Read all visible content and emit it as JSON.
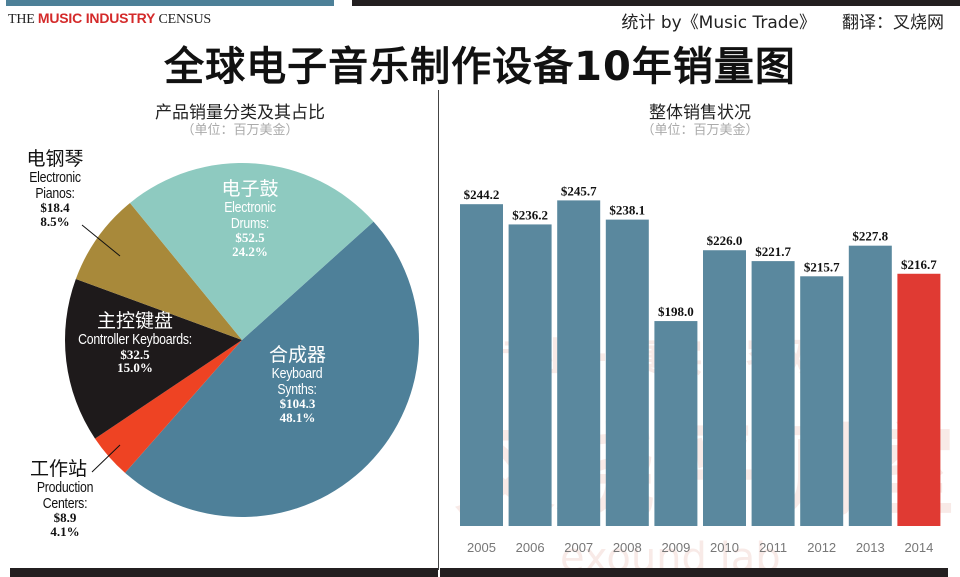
{
  "header": {
    "brand_prefix": "THE ",
    "brand_highlight": "MUSIC INDUSTRY",
    "brand_suffix": " CENSUS",
    "source": "统计 by《Music Trade》",
    "translator": "翻译：叉烧网",
    "title": "全球电子音乐制作设备10年销量图"
  },
  "watermark": {
    "slogan": "专业 · 真实 · 客观",
    "name": "叉烧评测室",
    "en": "exound lab"
  },
  "colors": {
    "synths": "#4e8099",
    "drums": "#8ecac0",
    "pianos": "#a8893a",
    "controller": "#1e1a1b",
    "production": "#ee4323",
    "bar": "#5a889e",
    "bar_highlight": "#e03a33"
  },
  "chart_data": [
    {
      "type": "pie",
      "title": "产品销量分类及其占比",
      "subtitle": "（单位：百万美金）",
      "slices": [
        {
          "key": "synths",
          "zh": "合成器",
          "en": "Keyboard Synths:",
          "value": 104.3,
          "value_label": "$104.3",
          "percent": 48.1,
          "percent_label": "48.1%"
        },
        {
          "key": "production",
          "zh": "工作站",
          "en": "Production Centers:",
          "value": 8.9,
          "value_label": "$8.9",
          "percent": 4.1,
          "percent_label": "4.1%"
        },
        {
          "key": "controller",
          "zh": "主控键盘",
          "en": "Controller Keyboards:",
          "value": 32.5,
          "value_label": "$32.5",
          "percent": 15.0,
          "percent_label": "15.0%"
        },
        {
          "key": "pianos",
          "zh": "电钢琴",
          "en": "Electronic Pianos:",
          "value": 18.4,
          "value_label": "$18.4",
          "percent": 8.5,
          "percent_label": "8.5%"
        },
        {
          "key": "drums",
          "zh": "电子鼓",
          "en": "Electronic Drums:",
          "value": 52.5,
          "value_label": "$52.5",
          "percent": 24.2,
          "percent_label": "24.2%"
        }
      ]
    },
    {
      "type": "bar",
      "title": "整体销售状况",
      "subtitle": "（单位：百万美金）",
      "categories": [
        "2005",
        "2006",
        "2007",
        "2008",
        "2009",
        "2010",
        "2011",
        "2012",
        "2013",
        "2014"
      ],
      "values": [
        244.2,
        236.2,
        245.7,
        238.1,
        198.0,
        226.0,
        221.7,
        215.7,
        227.8,
        216.7
      ],
      "value_labels": [
        "$244.2",
        "$236.2",
        "$245.7",
        "$238.1",
        "$198.0",
        "$226.0",
        "$221.7",
        "$215.7",
        "$227.8",
        "$216.7"
      ],
      "highlight": "2014",
      "grid": false
    }
  ]
}
